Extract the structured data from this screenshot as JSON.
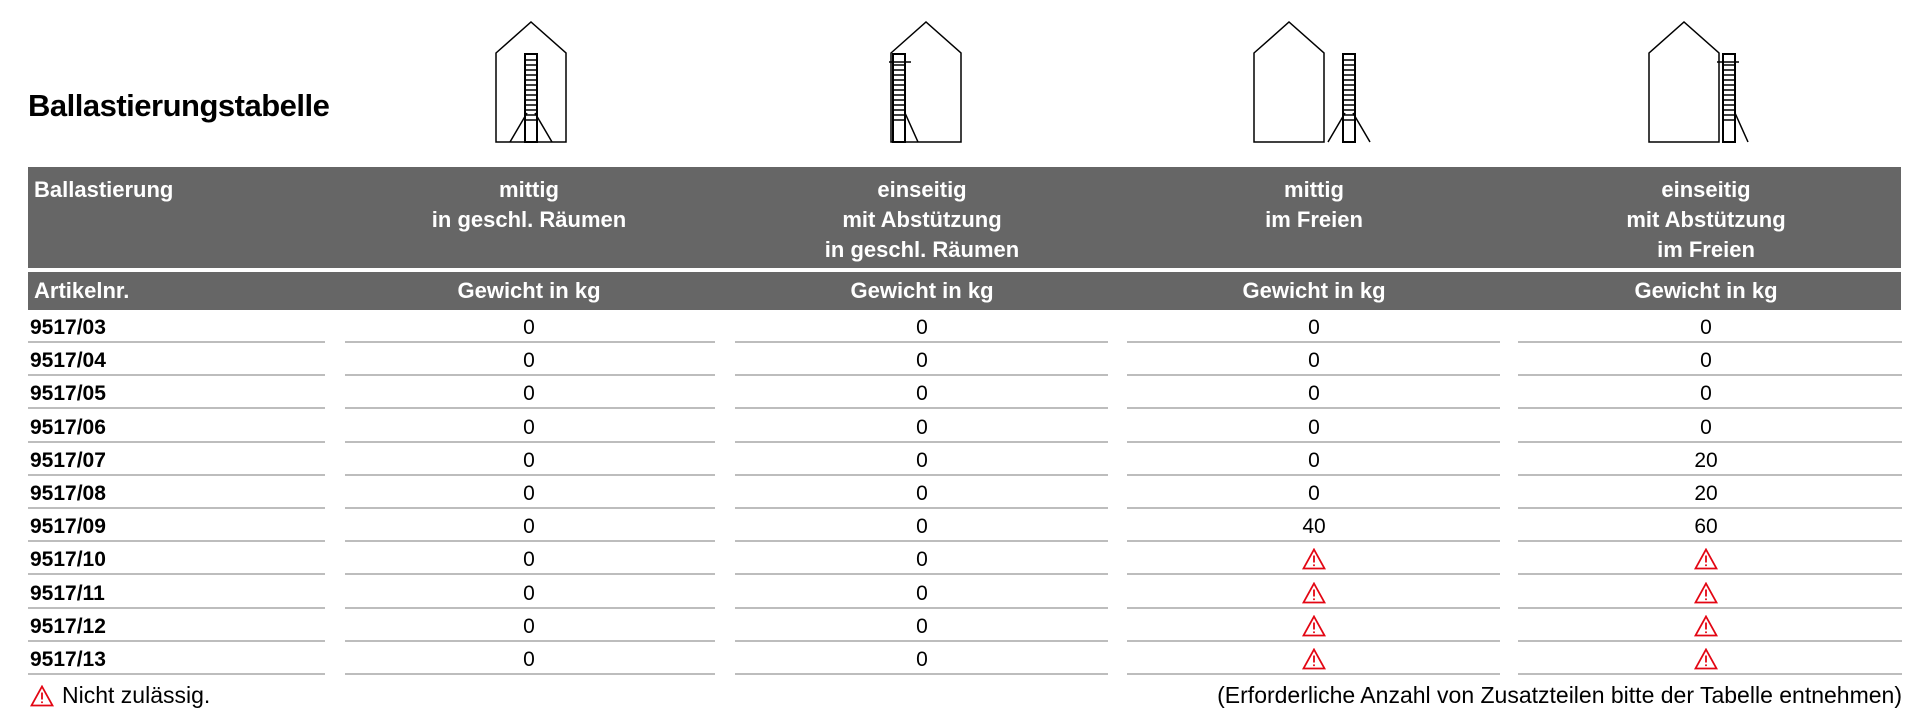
{
  "title": "Ballastierungstabelle",
  "header": {
    "row_label": "Ballastierung",
    "columns": [
      {
        "lines": [
          "mittig",
          "in geschl. Räumen"
        ],
        "icon": "house-ladder-center-indoor"
      },
      {
        "lines": [
          "einseitig",
          "mit Abstützung",
          "in geschl. Räumen"
        ],
        "icon": "house-ladder-side-indoor"
      },
      {
        "lines": [
          "mittig",
          "im Freien"
        ],
        "icon": "house-ladder-center-outdoor"
      },
      {
        "lines": [
          "einseitig",
          "mit Abstützung",
          "im Freien"
        ],
        "icon": "house-ladder-side-outdoor"
      }
    ],
    "sub_label": "Artikelnr.",
    "sub_columns": [
      "Gewicht in kg",
      "Gewicht in kg",
      "Gewicht in kg",
      "Gewicht in kg"
    ]
  },
  "rows": [
    {
      "art": "9517/03",
      "values": [
        "0",
        "0",
        "0",
        "0"
      ]
    },
    {
      "art": "9517/04",
      "values": [
        "0",
        "0",
        "0",
        "0"
      ]
    },
    {
      "art": "9517/05",
      "values": [
        "0",
        "0",
        "0",
        "0"
      ]
    },
    {
      "art": "9517/06",
      "values": [
        "0",
        "0",
        "0",
        "0"
      ]
    },
    {
      "art": "9517/07",
      "values": [
        "0",
        "0",
        "0",
        "20"
      ]
    },
    {
      "art": "9517/08",
      "values": [
        "0",
        "0",
        "0",
        "20"
      ]
    },
    {
      "art": "9517/09",
      "values": [
        "0",
        "0",
        "40",
        "60"
      ]
    },
    {
      "art": "9517/10",
      "values": [
        "0",
        "0",
        "warning",
        "warning"
      ]
    },
    {
      "art": "9517/11",
      "values": [
        "0",
        "0",
        "warning",
        "warning"
      ]
    },
    {
      "art": "9517/12",
      "values": [
        "0",
        "0",
        "warning",
        "warning"
      ]
    },
    {
      "art": "9517/13",
      "values": [
        "0",
        "0",
        "warning",
        "warning"
      ]
    }
  ],
  "legend": {
    "icon": "warning-triangle-icon",
    "text": "Nicht zulässig."
  },
  "note": "(Erforderliche Anzahl von Zusatzteilen bitte der Tabelle entnehmen)",
  "colors": {
    "header_bg": "#666666",
    "warning": "#e30613",
    "rule": "#bdbdbd"
  }
}
